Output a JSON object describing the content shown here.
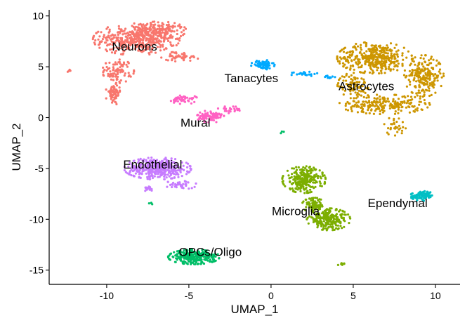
{
  "chart_data": {
    "type": "scatter",
    "title": "",
    "xlabel": "UMAP_1",
    "ylabel": "UMAP_2",
    "xlim": [
      -13.5,
      11.5
    ],
    "ylim": [
      -16.4,
      10.6
    ],
    "x_ticks": [
      -10,
      -5,
      0,
      5,
      10
    ],
    "y_ticks": [
      -15,
      -10,
      -5,
      0,
      5,
      10
    ],
    "x_tick_labels": [
      "-10",
      "-5",
      "0",
      "5",
      "10"
    ],
    "y_tick_labels": [
      "-15",
      "-10",
      "-5",
      "0",
      "5",
      "10"
    ],
    "grid": false,
    "legend": "none",
    "series": [
      {
        "name": "Neurons",
        "color": "#F8766D",
        "label_x": -8.3,
        "label_y": 7.0,
        "blobs": [
          [
            -8.2,
            7.7,
            2.2,
            1.3,
            420
          ],
          [
            -6.8,
            8.5,
            1.4,
            0.8,
            160
          ],
          [
            -9.3,
            4.6,
            0.8,
            1.0,
            90
          ],
          [
            -9.6,
            2.3,
            0.4,
            0.9,
            60
          ],
          [
            -5.5,
            6.0,
            1.0,
            0.4,
            50
          ],
          [
            -12.3,
            4.6,
            0.1,
            0.1,
            4
          ]
        ]
      },
      {
        "name": "Tanacytes",
        "color": "#00A9FF",
        "label_x": -1.2,
        "label_y": 3.9,
        "blobs": [
          [
            -0.5,
            5.2,
            0.6,
            0.4,
            70
          ],
          [
            2.0,
            4.3,
            0.7,
            0.2,
            25
          ],
          [
            3.6,
            4.0,
            0.3,
            0.2,
            10
          ]
        ]
      },
      {
        "name": "Astrocytes",
        "color": "#CD9600",
        "label_x": 5.8,
        "label_y": 3.1,
        "blobs": [
          [
            6.3,
            5.9,
            1.9,
            1.3,
            380
          ],
          [
            9.3,
            4.1,
            1.0,
            1.7,
            220
          ],
          [
            6.9,
            1.3,
            2.3,
            0.8,
            220
          ],
          [
            5.0,
            3.2,
            0.8,
            1.0,
            90
          ],
          [
            7.5,
            -0.8,
            0.6,
            0.8,
            30
          ]
        ]
      },
      {
        "name": "Mural",
        "color": "#FF61C3",
        "label_x": -4.6,
        "label_y": -0.5,
        "blobs": [
          [
            -3.7,
            0.1,
            0.7,
            0.5,
            100
          ],
          [
            -5.3,
            1.8,
            0.7,
            0.4,
            45
          ],
          [
            -2.6,
            0.8,
            0.6,
            0.3,
            25
          ]
        ]
      },
      {
        "name": "Endothelial",
        "color": "#C77CFF",
        "label_x": -7.2,
        "label_y": -4.6,
        "blobs": [
          [
            -6.9,
            -5.0,
            1.7,
            0.9,
            380
          ],
          [
            -7.5,
            -7.0,
            0.4,
            0.2,
            20
          ],
          [
            -5.5,
            -6.6,
            0.8,
            0.4,
            40
          ]
        ]
      },
      {
        "name": "Microglia",
        "color": "#7CAE00",
        "label_x": 1.5,
        "label_y": -9.2,
        "blobs": [
          [
            2.0,
            -6.1,
            1.1,
            1.1,
            260
          ],
          [
            3.5,
            -10.0,
            1.1,
            0.9,
            220
          ],
          [
            2.6,
            -8.6,
            0.6,
            0.6,
            70
          ],
          [
            4.3,
            -14.4,
            0.3,
            0.1,
            8
          ]
        ]
      },
      {
        "name": "Ependymal",
        "color": "#00BFC4",
        "label_x": 7.7,
        "label_y": -8.4,
        "blobs": [
          [
            9.2,
            -7.7,
            0.6,
            0.4,
            90
          ]
        ]
      },
      {
        "name": "OPCs/Oligo",
        "color": "#00BE67",
        "label_x": -3.7,
        "label_y": -13.2,
        "blobs": [
          [
            -4.7,
            -13.7,
            1.3,
            0.6,
            280
          ],
          [
            -7.3,
            -8.4,
            0.1,
            0.2,
            4
          ],
          [
            0.7,
            -1.4,
            0.1,
            0.2,
            3
          ]
        ]
      }
    ]
  }
}
